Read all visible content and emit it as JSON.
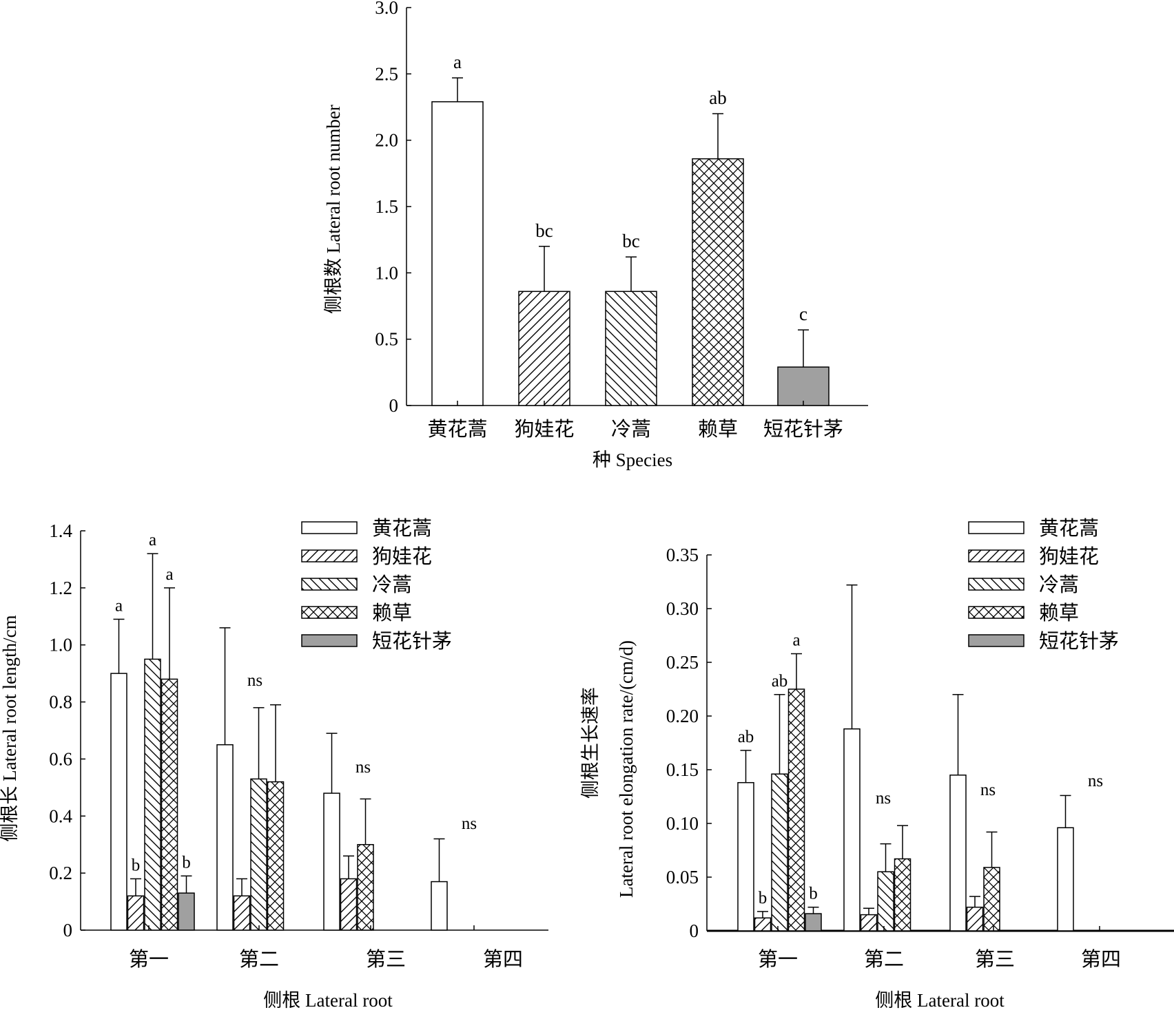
{
  "chart_data": [
    {
      "id": "top",
      "type": "bar",
      "xlabel": "种 Species",
      "ylabel": "侧根数 Lateral root number",
      "ylim": [
        0,
        3.0
      ],
      "yticks": [
        "0",
        "0.5",
        "1.0",
        "1.5",
        "2.0",
        "2.5",
        "3.0"
      ],
      "categories": [
        "黄花蒿",
        "狗娃花",
        "冷蒿",
        "赖草",
        "短花针茅"
      ],
      "values": [
        2.29,
        0.86,
        0.86,
        1.86,
        0.29
      ],
      "errors": [
        0.18,
        0.34,
        0.26,
        0.34,
        0.28
      ],
      "letters": [
        "a",
        "bc",
        "bc",
        "ab",
        "c"
      ],
      "patterns": [
        "white",
        "fwd",
        "back",
        "cross",
        "gray"
      ]
    },
    {
      "id": "bl",
      "type": "bar",
      "xlabel": "侧根 Lateral root",
      "ylabel": "侧根长 Lateral root length/cm",
      "ylim": [
        0,
        1.4
      ],
      "yticks": [
        "0",
        "0.2",
        "0.4",
        "0.6",
        "0.8",
        "1.0",
        "1.2",
        "1.4"
      ],
      "categories": [
        "第一",
        "第二",
        "第三",
        "第四"
      ],
      "legend": {
        "position": "top-right",
        "entries": [
          "黄花蒿",
          "狗娃花",
          "冷蒿",
          "赖草",
          "短花针茅"
        ]
      },
      "series": [
        {
          "name": "黄花蒿",
          "values": [
            0.9,
            0.65,
            0.48,
            0.17
          ],
          "errors": [
            0.19,
            0.41,
            0.21,
            0.15
          ]
        },
        {
          "name": "狗娃花",
          "values": [
            0.12,
            0.12,
            0.18,
            null
          ],
          "errors": [
            0.06,
            0.06,
            0.08,
            null
          ]
        },
        {
          "name": "冷蒿",
          "values": [
            0.95,
            0.53,
            null,
            null
          ],
          "errors": [
            0.37,
            0.25,
            null,
            null
          ]
        },
        {
          "name": "赖草",
          "values": [
            0.88,
            0.52,
            0.3,
            null
          ],
          "errors": [
            0.32,
            0.27,
            0.16,
            null
          ]
        },
        {
          "name": "短花针茅",
          "values": [
            0.13,
            null,
            null,
            null
          ],
          "errors": [
            0.06,
            null,
            null,
            null
          ]
        }
      ],
      "letters": [
        [
          "a",
          "b",
          "a",
          "a",
          "b"
        ],
        [
          "ns"
        ],
        [
          "ns"
        ],
        [
          "ns"
        ]
      ]
    },
    {
      "id": "br",
      "type": "bar",
      "xlabel": "侧根 Lateral root",
      "ylabel": [
        "侧根生长速率",
        "Lateral root elongation rate/(cm/d)"
      ],
      "ylim": [
        0,
        0.35
      ],
      "yticks": [
        "0",
        "0.05",
        "0.10",
        "0.15",
        "0.20",
        "0.25",
        "0.30",
        "0.35"
      ],
      "categories": [
        "第一",
        "第二",
        "第三",
        "第四"
      ],
      "legend": {
        "position": "top-right",
        "entries": [
          "黄花蒿",
          "狗娃花",
          "冷蒿",
          "赖草",
          "短花针茅"
        ]
      },
      "series": [
        {
          "name": "黄花蒿",
          "values": [
            0.138,
            0.188,
            0.145,
            0.096
          ],
          "errors": [
            0.03,
            0.134,
            0.075,
            0.03
          ]
        },
        {
          "name": "狗娃花",
          "values": [
            0.012,
            0.015,
            0.022,
            null
          ],
          "errors": [
            0.006,
            0.006,
            0.01,
            null
          ]
        },
        {
          "name": "冷蒿",
          "values": [
            0.146,
            0.055,
            null,
            null
          ],
          "errors": [
            0.074,
            0.026,
            null,
            null
          ]
        },
        {
          "name": "赖草",
          "values": [
            0.225,
            0.067,
            0.059,
            null
          ],
          "errors": [
            0.033,
            0.031,
            0.033,
            null
          ]
        },
        {
          "name": "短花针茅",
          "values": [
            0.016,
            null,
            null,
            null
          ],
          "errors": [
            0.006,
            null,
            null,
            null
          ]
        }
      ],
      "letters": [
        [
          "ab",
          "b",
          "ab",
          "a",
          "b"
        ],
        [
          "ns"
        ],
        [
          "ns"
        ],
        [
          "ns"
        ]
      ]
    }
  ]
}
